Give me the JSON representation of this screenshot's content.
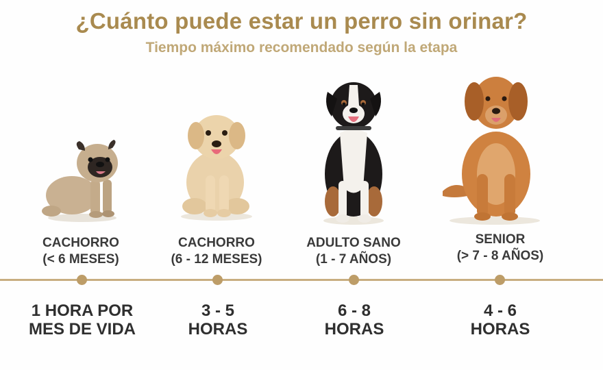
{
  "header": {
    "title": "¿Cuánto puede estar un perro sin orinar?",
    "subtitle": "Tiempo máximo recomendado según la etapa"
  },
  "stages": [
    {
      "label_line1": "CACHORRO",
      "label_line2": "(< 6 MESES)",
      "value_line1": "1 HORA POR",
      "value_line2": "MES DE VIDA"
    },
    {
      "label_line1": "CACHORRO",
      "label_line2": "(6 - 12 MESES)",
      "value_line1": "3 - 5",
      "value_line2": "HORAS"
    },
    {
      "label_line1": "ADULTO SANO",
      "label_line2": "(1 - 7 AÑOS)",
      "value_line1": "6 - 8",
      "value_line2": "HORAS"
    },
    {
      "label_line1": "SENIOR",
      "label_line2": "(> 7 - 8 AÑOS)",
      "value_line1": "4 - 6",
      "value_line2": "HORAS"
    }
  ],
  "colors": {
    "title": "#a98a4f",
    "subtitle": "#c0a877",
    "timeline": "#c8ad80",
    "dot": "#bd9d68"
  },
  "icons": [
    "pug-puppy-image",
    "golden-puppy-image",
    "bernese-adult-image",
    "golden-senior-image"
  ]
}
